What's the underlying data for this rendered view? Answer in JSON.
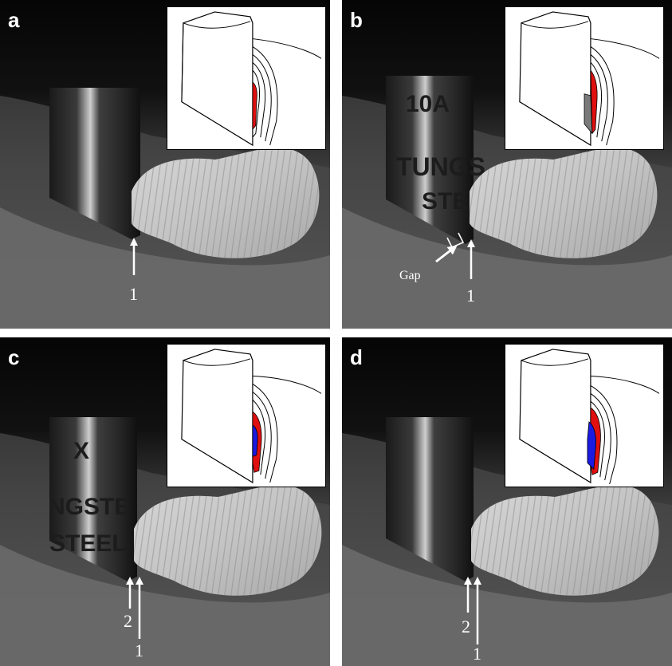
{
  "panels": [
    {
      "letter": "a",
      "arrows": [
        "1"
      ],
      "tool_text": []
    },
    {
      "letter": "b",
      "arrows": [
        "1"
      ],
      "gap_label": "Gap",
      "tool_text": [
        "10A",
        "TUNGS",
        "STE"
      ]
    },
    {
      "letter": "c",
      "arrows": [
        "2",
        "1"
      ],
      "tool_text": [
        "X",
        "NGSTE",
        "STEEL"
      ]
    },
    {
      "letter": "d",
      "arrows": [
        "2",
        "1"
      ],
      "tool_text": []
    }
  ],
  "colors": {
    "deformed_region_red": "#e01010",
    "deformed_region_blue": "#1a1ae0",
    "gap_region_gray": "#7a7a7a",
    "arrow": "#ffffff"
  }
}
